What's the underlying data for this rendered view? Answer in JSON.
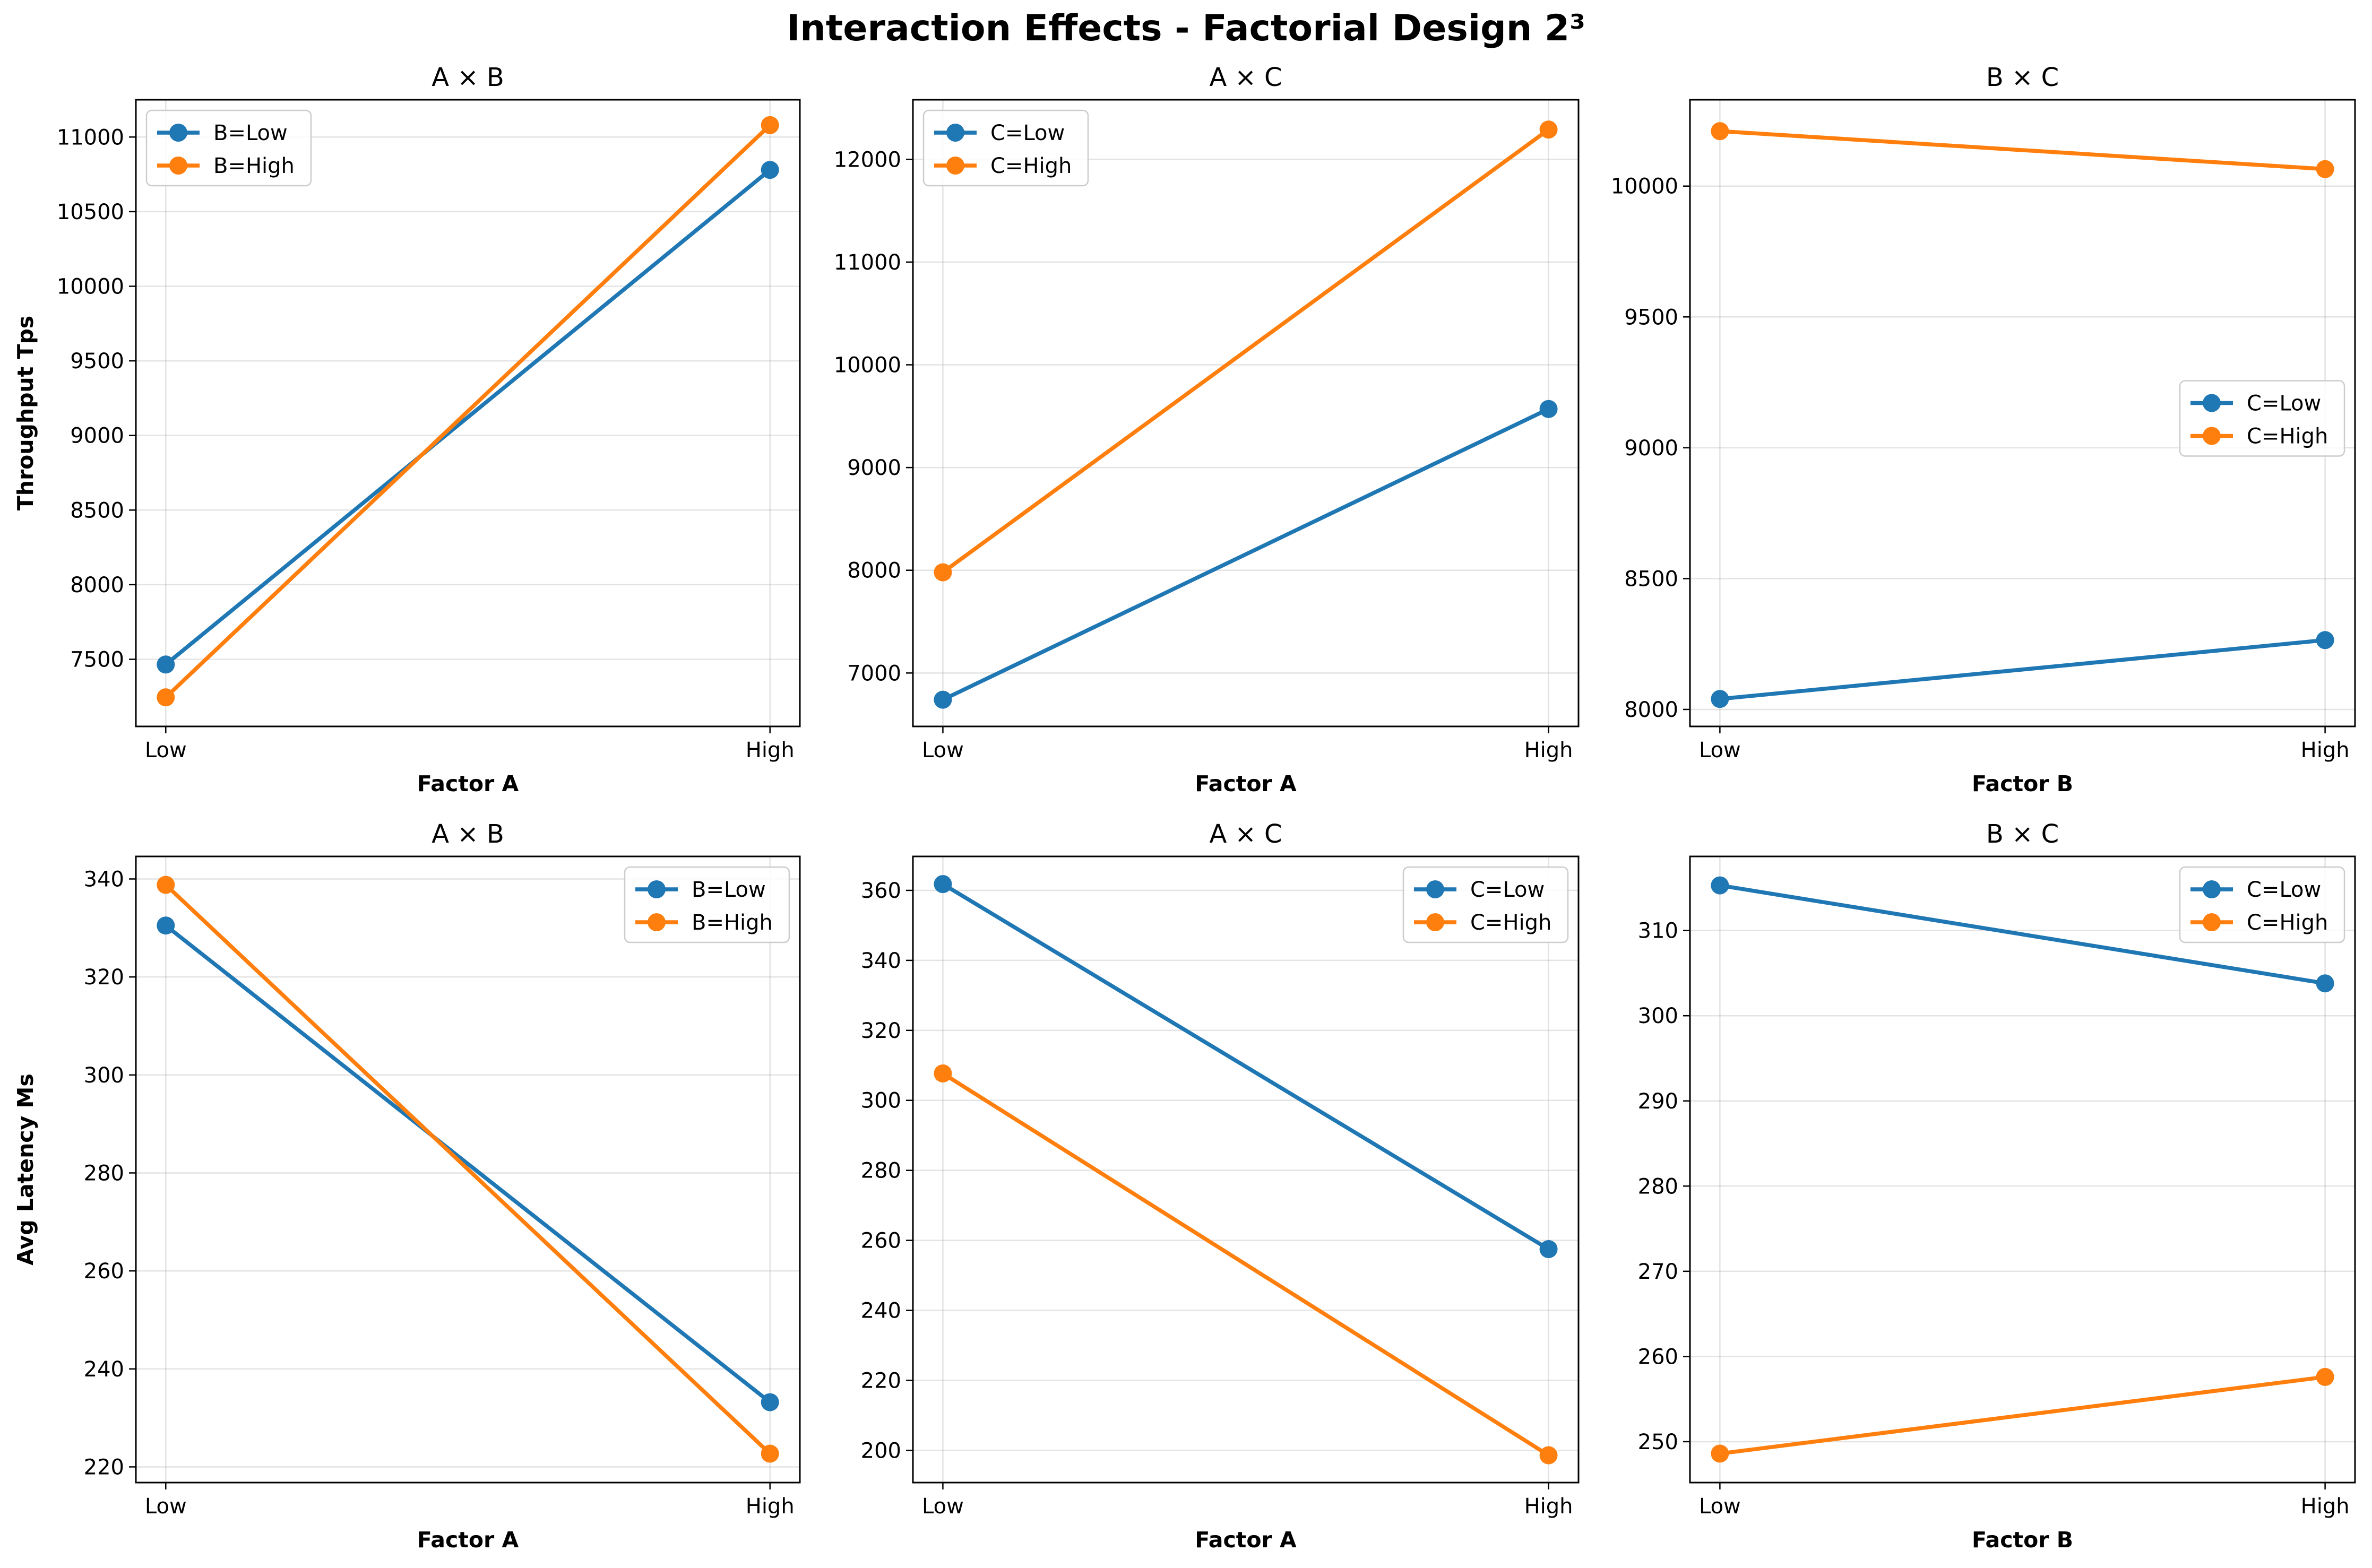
{
  "title": "Interaction Effects - Factorial Design 2³",
  "colors": {
    "low": "#1f77b4",
    "high": "#ff7f0e"
  },
  "chart_data": [
    {
      "type": "line",
      "title": "A × B",
      "xlabel": "Factor A",
      "ylabel": "Throughput Tps",
      "categories": [
        "Low",
        "High"
      ],
      "ylim": [
        7050,
        11250
      ],
      "yticks": [
        7500,
        8000,
        8500,
        9000,
        9500,
        10000,
        10500,
        11000
      ],
      "legend_loc": "upper-left",
      "grid": true,
      "series": [
        {
          "name": "B=Low",
          "values": [
            7465,
            10780
          ]
        },
        {
          "name": "B=High",
          "values": [
            7245,
            11080
          ]
        }
      ]
    },
    {
      "type": "line",
      "title": "A × C",
      "xlabel": "Factor A",
      "ylabel": "",
      "categories": [
        "Low",
        "High"
      ],
      "ylim": [
        6480,
        12580
      ],
      "yticks": [
        7000,
        8000,
        9000,
        10000,
        11000,
        12000
      ],
      "legend_loc": "upper-left",
      "grid": true,
      "series": [
        {
          "name": "C=Low",
          "values": [
            6740,
            9570
          ]
        },
        {
          "name": "C=High",
          "values": [
            7980,
            12290
          ]
        }
      ]
    },
    {
      "type": "line",
      "title": "B × C",
      "xlabel": "Factor B",
      "ylabel": "",
      "categories": [
        "Low",
        "High"
      ],
      "ylim": [
        7935,
        10330
      ],
      "yticks": [
        8000,
        8500,
        9000,
        9500,
        10000
      ],
      "legend_loc": "center-right",
      "grid": true,
      "series": [
        {
          "name": "C=Low",
          "values": [
            8040,
            8265
          ]
        },
        {
          "name": "C=High",
          "values": [
            10210,
            10065
          ]
        }
      ]
    },
    {
      "type": "line",
      "title": "A × B",
      "xlabel": "Factor A",
      "ylabel": "Avg Latency Ms",
      "categories": [
        "Low",
        "High"
      ],
      "ylim": [
        216.8,
        344.6
      ],
      "yticks": [
        220,
        240,
        260,
        280,
        300,
        320,
        340
      ],
      "legend_loc": "upper-right",
      "grid": true,
      "series": [
        {
          "name": "B=Low",
          "values": [
            330.5,
            233.2
          ]
        },
        {
          "name": "B=High",
          "values": [
            338.8,
            222.7
          ]
        }
      ]
    },
    {
      "type": "line",
      "title": "A × C",
      "xlabel": "Factor A",
      "ylabel": "",
      "categories": [
        "Low",
        "High"
      ],
      "ylim": [
        190.8,
        369.7
      ],
      "yticks": [
        200,
        220,
        240,
        260,
        280,
        300,
        320,
        340,
        360
      ],
      "legend_loc": "upper-right",
      "grid": true,
      "series": [
        {
          "name": "C=Low",
          "values": [
            361.8,
            257.5
          ]
        },
        {
          "name": "C=High",
          "values": [
            307.7,
            198.6
          ]
        }
      ]
    },
    {
      "type": "line",
      "title": "B × C",
      "xlabel": "Factor B",
      "ylabel": "",
      "categories": [
        "Low",
        "High"
      ],
      "ylim": [
        245.2,
        318.7
      ],
      "yticks": [
        250,
        260,
        270,
        280,
        290,
        300,
        310
      ],
      "legend_loc": "upper-right",
      "grid": true,
      "series": [
        {
          "name": "C=Low",
          "values": [
            315.3,
            303.8
          ]
        },
        {
          "name": "C=High",
          "values": [
            248.6,
            257.6
          ]
        }
      ]
    }
  ]
}
